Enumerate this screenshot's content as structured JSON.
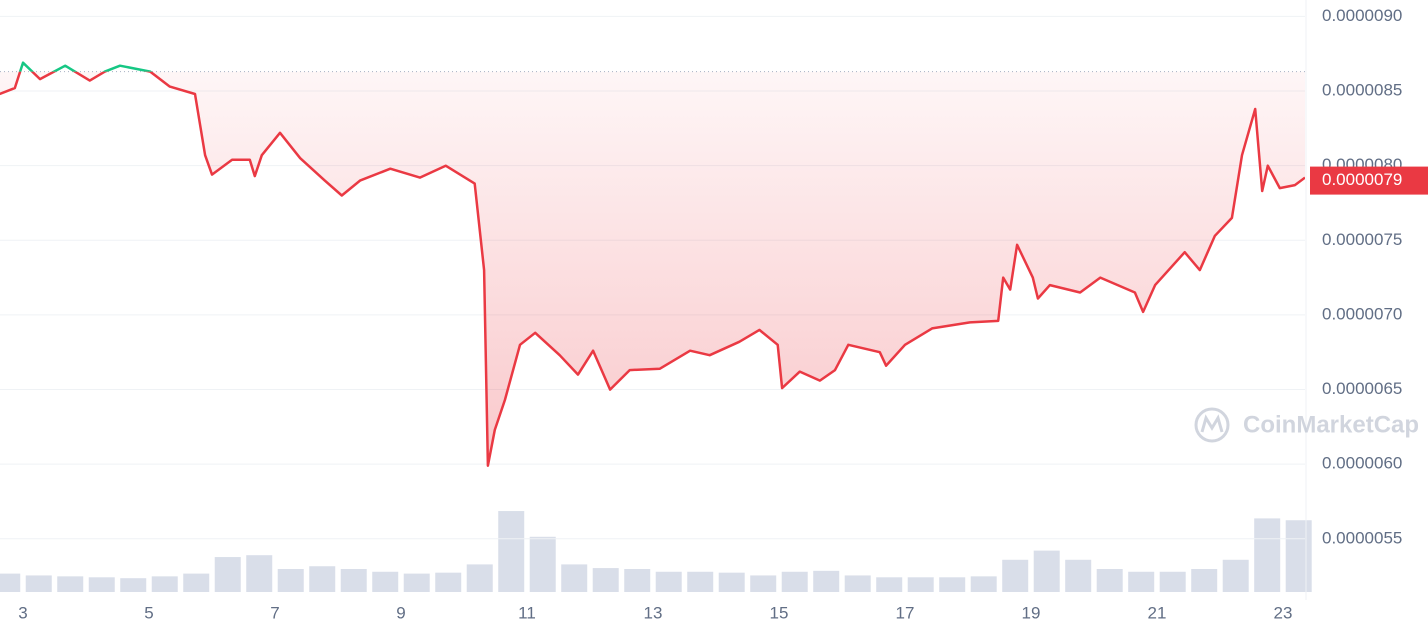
{
  "chart_data": {
    "type": "line",
    "x": [
      2.63,
      2.87,
      3.0,
      3.27,
      3.67,
      4.06,
      4.3,
      4.54,
      5.02,
      5.33,
      5.73,
      5.89,
      6.0,
      6.32,
      6.6,
      6.68,
      6.79,
      7.08,
      7.4,
      7.79,
      8.06,
      8.35,
      8.83,
      9.3,
      9.71,
      10.17,
      10.32,
      10.38,
      10.49,
      10.65,
      10.89,
      11.13,
      11.52,
      11.81,
      12.05,
      12.32,
      12.63,
      13.11,
      13.59,
      13.9,
      14.37,
      14.69,
      14.98,
      15.05,
      15.33,
      15.65,
      15.89,
      16.1,
      16.6,
      16.7,
      17.0,
      17.43,
      18.03,
      18.48,
      18.56,
      18.67,
      18.78,
      19.03,
      19.11,
      19.3,
      19.78,
      20.1,
      20.65,
      20.78,
      20.97,
      21.44,
      21.68,
      21.92,
      22.19,
      22.35,
      22.56,
      22.67,
      22.76,
      22.95,
      23.19,
      23.35
    ],
    "values": [
      8.48e-06,
      8.52e-06,
      8.69e-06,
      8.58e-06,
      8.67e-06,
      8.57e-06,
      8.63e-06,
      8.67e-06,
      8.63e-06,
      8.53e-06,
      8.48e-06,
      8.07e-06,
      7.94e-06,
      8.04e-06,
      8.04e-06,
      7.93e-06,
      8.07e-06,
      8.22e-06,
      8.05e-06,
      7.9e-06,
      7.8e-06,
      7.9e-06,
      7.98e-06,
      7.92e-06,
      8e-06,
      7.88e-06,
      7.3e-06,
      5.99e-06,
      6.23e-06,
      6.43e-06,
      6.8e-06,
      6.88e-06,
      6.73e-06,
      6.6e-06,
      6.76e-06,
      6.5e-06,
      6.63e-06,
      6.64e-06,
      6.76e-06,
      6.73e-06,
      6.82e-06,
      6.9e-06,
      6.8e-06,
      6.51e-06,
      6.62e-06,
      6.56e-06,
      6.63e-06,
      6.8e-06,
      6.75e-06,
      6.66e-06,
      6.8e-06,
      6.91e-06,
      6.95e-06,
      6.96e-06,
      7.25e-06,
      7.17e-06,
      7.47e-06,
      7.25e-06,
      7.11e-06,
      7.2e-06,
      7.15e-06,
      7.25e-06,
      7.15e-06,
      7.02e-06,
      7.2e-06,
      7.42e-06,
      7.3e-06,
      7.53e-06,
      7.65e-06,
      8.07e-06,
      8.38e-06,
      7.83e-06,
      8e-06,
      7.85e-06,
      7.87e-06,
      7.92e-06
    ],
    "baseline": 8.63e-06,
    "up_color": "#16c784",
    "down_color": "#ea3943",
    "current_price": 7.9e-06,
    "xlim": [
      2.635,
      23.35
    ],
    "xticks": [
      3,
      5,
      7,
      9,
      11,
      13,
      15,
      17,
      19,
      21,
      23
    ],
    "ylim": [
      5.09e-06,
      9.11e-06
    ],
    "yticks": [
      {
        "value": 9e-06,
        "label": "0.0000090"
      },
      8.5e-06,
      {
        "value": 8e-06,
        "label": "0.0000080"
      },
      7.5e-06,
      {
        "value": 7e-06,
        "label": "0.0000070"
      },
      6.5e-06,
      {
        "value": 6e-06,
        "label": "0.0000060"
      },
      5.5e-06
    ],
    "grid": true,
    "watermark": "CoinMarketCap",
    "volume": {
      "color": "#cfd6e4",
      "ylim": [
        0,
        100
      ],
      "x": [
        2.75,
        3.25,
        3.75,
        4.25,
        4.75,
        5.25,
        5.75,
        6.25,
        6.75,
        7.25,
        7.75,
        8.25,
        8.75,
        9.25,
        9.75,
        10.25,
        10.75,
        11.25,
        11.75,
        12.25,
        12.75,
        13.25,
        13.75,
        14.25,
        14.75,
        15.25,
        15.75,
        16.25,
        16.75,
        17.25,
        17.75,
        18.25,
        18.75,
        19.25,
        19.75,
        20.25,
        20.75,
        21.25,
        21.75,
        22.25,
        22.75,
        23.25
      ],
      "values": [
        20,
        18,
        17,
        16,
        15,
        17,
        20,
        38,
        40,
        25,
        28,
        25,
        22,
        20,
        21,
        30,
        88,
        60,
        30,
        26,
        25,
        22,
        22,
        21,
        18,
        22,
        23,
        18,
        16,
        16,
        16,
        17,
        35,
        45,
        35,
        25,
        22,
        22,
        25,
        35,
        80,
        78
      ]
    }
  }
}
